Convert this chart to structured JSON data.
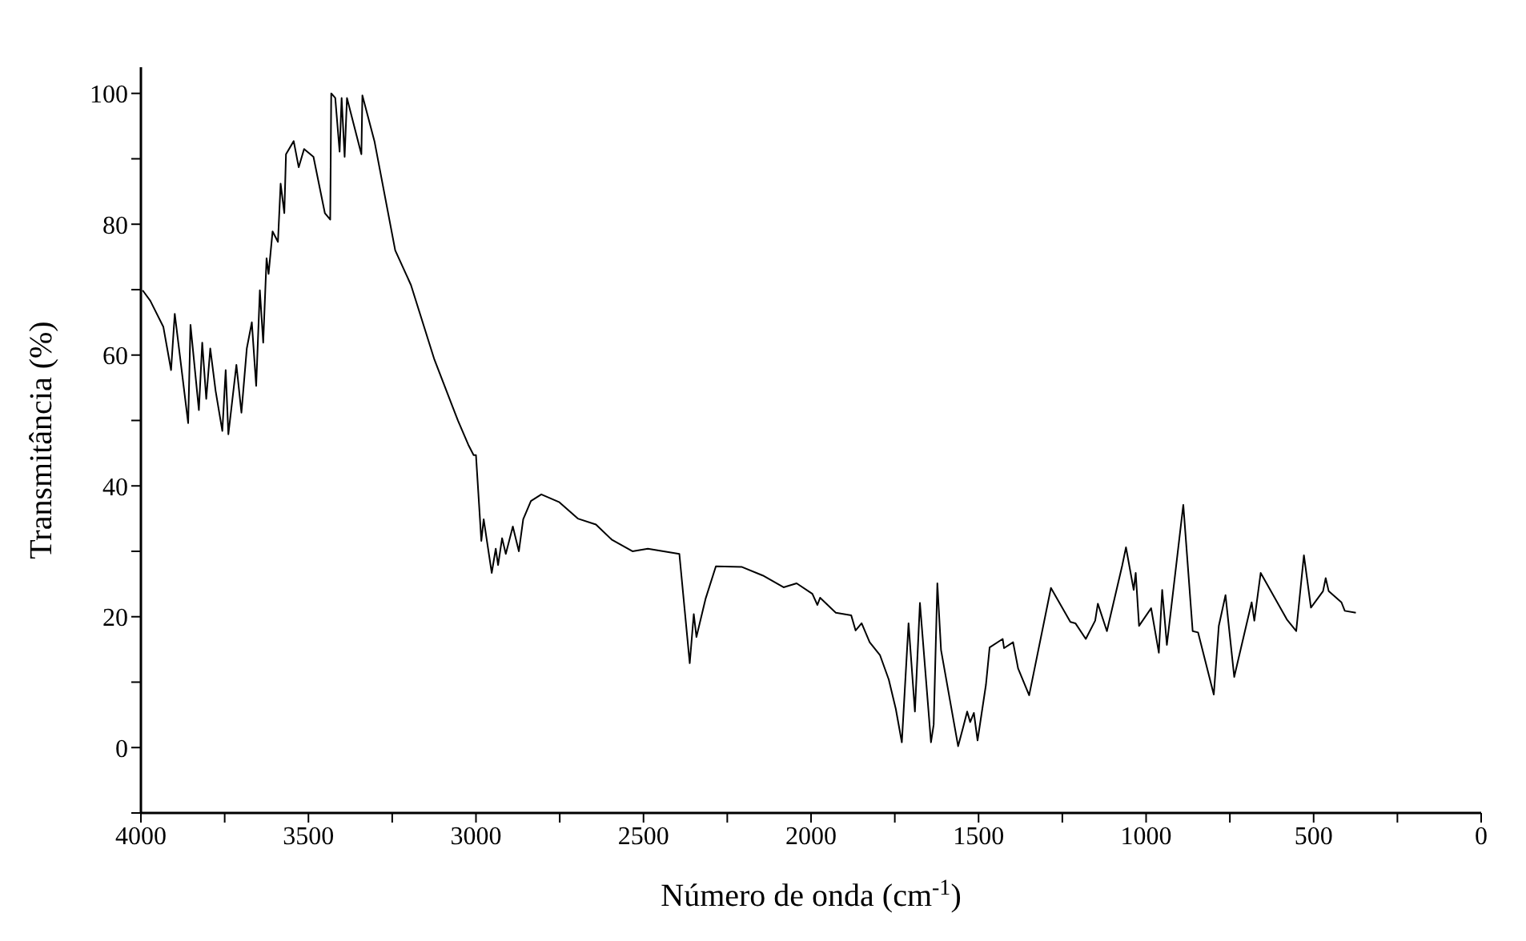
{
  "chart_data": {
    "type": "line",
    "xlabel": "Número de onda (cm$^{-1}$)",
    "ylabel": "Transmitância (%)",
    "xlim": [
      4000,
      0
    ],
    "ylim": [
      -10,
      104
    ],
    "xticks": [
      4000,
      {
        "value": 3750,
        "label": null
      },
      3500,
      {
        "value": 3250,
        "label": null
      },
      3000,
      {
        "value": 2750,
        "label": null
      },
      2500,
      {
        "value": 2250,
        "label": null
      },
      2000,
      {
        "value": 1750,
        "label": null
      },
      1500,
      {
        "value": 1250,
        "label": null
      },
      1000,
      {
        "value": 750,
        "label": null
      },
      500,
      {
        "value": 250,
        "label": null
      },
      0
    ],
    "yticks": [
      {
        "value": -10,
        "label": null
      },
      0,
      {
        "value": 10,
        "label": null
      },
      20,
      {
        "value": 30,
        "label": null
      },
      40,
      {
        "value": 50,
        "label": null
      },
      60,
      {
        "value": 70,
        "label": null
      },
      80,
      {
        "value": 90,
        "label": null
      },
      100
    ],
    "marker": "none",
    "line_style": "solid",
    "x": [
      3995,
      3972,
      3933,
      3910,
      3899,
      3859,
      3852,
      3827,
      3817,
      3805,
      3793,
      3777,
      3757,
      3747,
      3739,
      3715,
      3700,
      3684,
      3669,
      3656,
      3645,
      3635,
      3625,
      3619,
      3607,
      3591,
      3583,
      3572,
      3567,
      3544,
      3529,
      3513,
      3485,
      3451,
      3435,
      3432,
      3420,
      3407,
      3401,
      3392,
      3385,
      3342,
      3339,
      3303,
      3241,
      3194,
      3124,
      3054,
      3023,
      3007,
      3000,
      2984,
      2977,
      2953,
      2941,
      2934,
      2922,
      2911,
      2890,
      2872,
      2859,
      2836,
      2805,
      2751,
      2696,
      2642,
      2595,
      2533,
      2487,
      2393,
      2362,
      2350,
      2342,
      2315,
      2284,
      2206,
      2144,
      2082,
      2043,
      1996,
      1981,
      1973,
      1926,
      1880,
      1867,
      1849,
      1825,
      1794,
      1768,
      1747,
      1729,
      1709,
      1690,
      1675,
      1642,
      1634,
      1623,
      1612,
      1561,
      1545,
      1534,
      1525,
      1514,
      1503,
      1478,
      1467,
      1428,
      1424,
      1397,
      1382,
      1349,
      1284,
      1226,
      1211,
      1180,
      1152,
      1144,
      1117,
      1071,
      1060,
      1037,
      1031,
      1021,
      985,
      962,
      952,
      938,
      889,
      861,
      845,
      798,
      783,
      763,
      737,
      685,
      677,
      658,
      580,
      552,
      529,
      508,
      472,
      464,
      455,
      417,
      407,
      374
    ],
    "series": [
      {
        "color": "#000000",
        "values": [
          69.9,
          68.3,
          64.3,
          57.7,
          66.3,
          49.6,
          64.6,
          51.6,
          61.9,
          53.3,
          61,
          54.5,
          48.4,
          57.7,
          47.9,
          58.5,
          51.2,
          61,
          65,
          55.3,
          69.9,
          61.9,
          74.8,
          72.4,
          78.9,
          77.3,
          86.2,
          81.7,
          90.7,
          92.7,
          88.7,
          91.5,
          90.3,
          81.7,
          80.7,
          100,
          99.3,
          91.1,
          99.3,
          90.3,
          99.3,
          90.7,
          99.7,
          92.7,
          76,
          70.7,
          59.3,
          50,
          46.3,
          44.7,
          44.7,
          31.6,
          34.9,
          26.7,
          30.4,
          27.9,
          32,
          29.6,
          33.8,
          30,
          34.9,
          37.7,
          38.7,
          37.5,
          35,
          34.1,
          31.8,
          30,
          30.4,
          29.6,
          12.9,
          20.4,
          16.9,
          22.7,
          27.7,
          27.6,
          26.3,
          24.5,
          25.1,
          23.5,
          21.8,
          22.9,
          20.6,
          20.2,
          17.9,
          19,
          16.1,
          14.1,
          10.4,
          5.9,
          0.8,
          19,
          5.5,
          22.1,
          0.8,
          3.5,
          25.1,
          14.9,
          0.2,
          3.3,
          5.5,
          3.9,
          5.3,
          1.1,
          9.6,
          15.3,
          16.6,
          15.2,
          16.1,
          12.1,
          8,
          24.4,
          19.2,
          19,
          16.6,
          19.4,
          22,
          17.8,
          27.9,
          30.6,
          24.1,
          26.7,
          18.6,
          21.3,
          14.5,
          24.1,
          15.7,
          37.1,
          17.8,
          17.6,
          8.1,
          18.6,
          23.3,
          10.8,
          22.2,
          19.4,
          26.7,
          19.6,
          17.8,
          29.4,
          21.4,
          23.9,
          25.9,
          23.9,
          22.2,
          20.9,
          20.6
        ]
      }
    ]
  }
}
